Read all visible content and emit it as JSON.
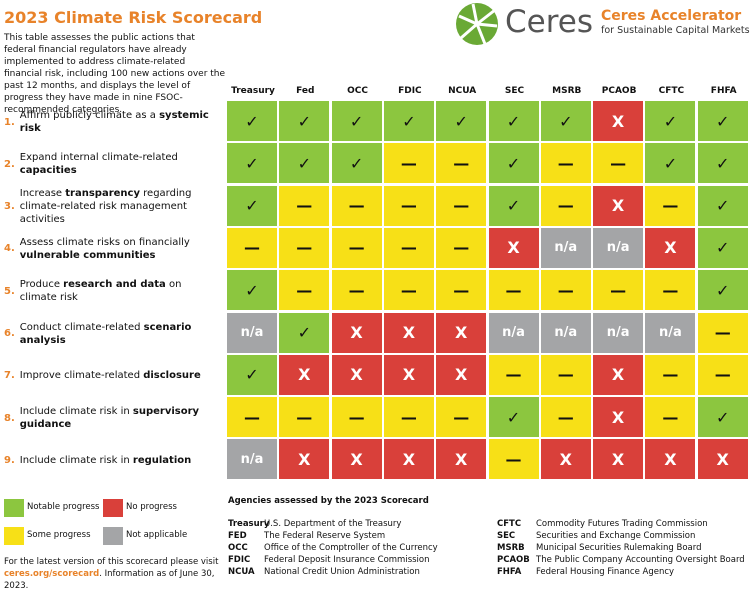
{
  "header": {
    "title": "2023 Climate Risk Scorecard",
    "description": "This table assesses the public actions that federal financial regulators have already implemented to address climate-related financial risk, including 100 new actions over the past 12 months, and displays the level of progress they have made in nine FSOC-recommended categories.",
    "logo_text": "Ceres",
    "accelerator_title": "Ceres Accelerator",
    "accelerator_subtitle": "for Sustainable Capital Markets"
  },
  "legend": [
    {
      "label": "Notable progress",
      "color": "#8cc63f",
      "mark": "✓"
    },
    {
      "label": "No progress",
      "color": "#d9403a",
      "mark": "X"
    },
    {
      "label": "Some progress",
      "color": "#f7e017",
      "mark": "—"
    },
    {
      "label": "Not applicable",
      "color": "#a4a5a7",
      "mark": "n/a"
    }
  ],
  "table": {
    "columns": [
      "Treasury",
      "Fed",
      "OCC",
      "FDIC",
      "NCUA",
      "SEC",
      "MSRB",
      "PCAOB",
      "CFTC",
      "FHFA"
    ],
    "rows": [
      {
        "number": "1.",
        "label": [
          {
            "text": "Affirm publicly climate as a "
          },
          {
            "text": "systemic risk",
            "bold": true
          }
        ],
        "cells": [
          "✓",
          "✓",
          "✓",
          "✓",
          "✓",
          "✓",
          "✓",
          "X",
          "✓",
          "✓"
        ]
      },
      {
        "number": "2.",
        "label": [
          {
            "text": "Expand internal climate-related "
          },
          {
            "text": "capacities",
            "bold": true
          }
        ],
        "cells": [
          "✓",
          "✓",
          "✓",
          "—",
          "—",
          "✓",
          "—",
          "—",
          "✓",
          "✓"
        ]
      },
      {
        "number": "3.",
        "label": [
          {
            "text": "Increase "
          },
          {
            "text": "transparency",
            "bold": true
          },
          {
            "text": " regarding climate-related risk management activities"
          }
        ],
        "cells": [
          "✓",
          "—",
          "—",
          "—",
          "—",
          "✓",
          "—",
          "X",
          "—",
          "✓"
        ]
      },
      {
        "number": "4.",
        "label": [
          {
            "text": "Assess climate risks on financially "
          },
          {
            "text": "vulnerable communities",
            "bold": true
          }
        ],
        "cells": [
          "—",
          "—",
          "—",
          "—",
          "—",
          "X",
          "n/a",
          "n/a",
          "X",
          "✓"
        ]
      },
      {
        "number": "5.",
        "label": [
          {
            "text": "Produce "
          },
          {
            "text": "research and data",
            "bold": true
          },
          {
            "text": " on climate risk"
          }
        ],
        "cells": [
          "✓",
          "—",
          "—",
          "—",
          "—",
          "—",
          "—",
          "—",
          "—",
          "✓"
        ]
      },
      {
        "number": "6.",
        "label": [
          {
            "text": "Conduct climate-related "
          },
          {
            "text": "scenario analysis",
            "bold": true
          }
        ],
        "cells": [
          "n/a",
          "✓",
          "X",
          "X",
          "X",
          "n/a",
          "n/a",
          "n/a",
          "n/a",
          "—"
        ]
      },
      {
        "number": "7.",
        "label": [
          {
            "text": "Improve climate-related "
          },
          {
            "text": "disclosure",
            "bold": true
          }
        ],
        "cells": [
          "✓",
          "X",
          "X",
          "X",
          "X",
          "—",
          "—",
          "X",
          "—",
          "—"
        ]
      },
      {
        "number": "8.",
        "label": [
          {
            "text": "Include climate risk in "
          },
          {
            "text": "supervisory guidance",
            "bold": true
          }
        ],
        "cells": [
          "—",
          "—",
          "—",
          "—",
          "—",
          "✓",
          "—",
          "X",
          "—",
          "✓"
        ]
      },
      {
        "number": "9.",
        "label": [
          {
            "text": "Include climate risk in "
          },
          {
            "text": "regulation",
            "bold": true
          }
        ],
        "cells": [
          "n/a",
          "X",
          "X",
          "X",
          "X",
          "—",
          "X",
          "X",
          "X",
          "X"
        ]
      }
    ]
  },
  "agencies": {
    "title": "Agencies assessed by the 2023 Scorecard",
    "items": [
      {
        "abbr": "Treasury",
        "name": "U.S. Department of the Treasury"
      },
      {
        "abbr": "FED",
        "name": "The Federal Reserve System"
      },
      {
        "abbr": "OCC",
        "name": "Office of the Comptroller of the Currency"
      },
      {
        "abbr": "FDIC",
        "name": "Federal Deposit Insurance Commission"
      },
      {
        "abbr": "NCUA",
        "name": "National Credit Union Administration"
      },
      {
        "abbr": "CFTC",
        "name": "Commodity Futures Trading Commission"
      },
      {
        "abbr": "SEC",
        "name": "Securities and Exchange Commission"
      },
      {
        "abbr": "MSRB",
        "name": "Municipal Securities Rulemaking Board"
      },
      {
        "abbr": "PCAOB",
        "name": "The Public Company Accounting Oversight Board"
      },
      {
        "abbr": "FHFA",
        "name": "Federal Housing Finance Agency"
      }
    ]
  },
  "footer": [
    {
      "text": "For the latest version of this scorecard please visit "
    },
    {
      "text": "ceres.org/scorecard",
      "bold": true
    },
    {
      "text": ". Information as of June 30, 2023."
    }
  ]
}
